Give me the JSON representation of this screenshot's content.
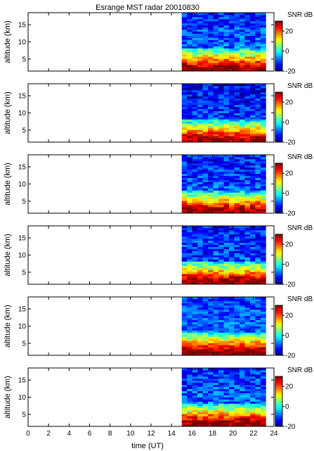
{
  "chart_data": {
    "type": "heatmap",
    "title": "Esrange MST radar 20010830",
    "xlabel": "time (UT)",
    "ylabel": "altitude (km)",
    "xlim": [
      0,
      24
    ],
    "ylim": [
      1.5,
      18.5
    ],
    "x_ticks": [
      0,
      2,
      4,
      6,
      8,
      10,
      12,
      14,
      16,
      18,
      20,
      22,
      24
    ],
    "y_ticks": [
      5,
      10,
      15
    ],
    "colorbar": {
      "label": "SNR dB",
      "range": [
        -20,
        30
      ],
      "ticks": [
        -20,
        0,
        20
      ]
    },
    "colormap": "jet",
    "grid": false,
    "data_time_range": [
      15,
      23.2
    ],
    "data_altitude_range": [
      1.5,
      18.5
    ],
    "time_bins": 16,
    "altitude_bins": 28,
    "panels": [
      {
        "index": 1,
        "near_surface_snr": 28,
        "upper_snr": -12,
        "variability": 6
      },
      {
        "index": 2,
        "near_surface_snr": 27,
        "upper_snr": -14,
        "variability": 6
      },
      {
        "index": 3,
        "near_surface_snr": 27,
        "upper_snr": -13,
        "variability": 6
      },
      {
        "index": 4,
        "near_surface_snr": 28,
        "upper_snr": -13,
        "variability": 6
      },
      {
        "index": 5,
        "near_surface_snr": 29,
        "upper_snr": -11,
        "variability": 5
      },
      {
        "index": 6,
        "near_surface_snr": 28,
        "upper_snr": -12,
        "variability": 6
      }
    ]
  }
}
